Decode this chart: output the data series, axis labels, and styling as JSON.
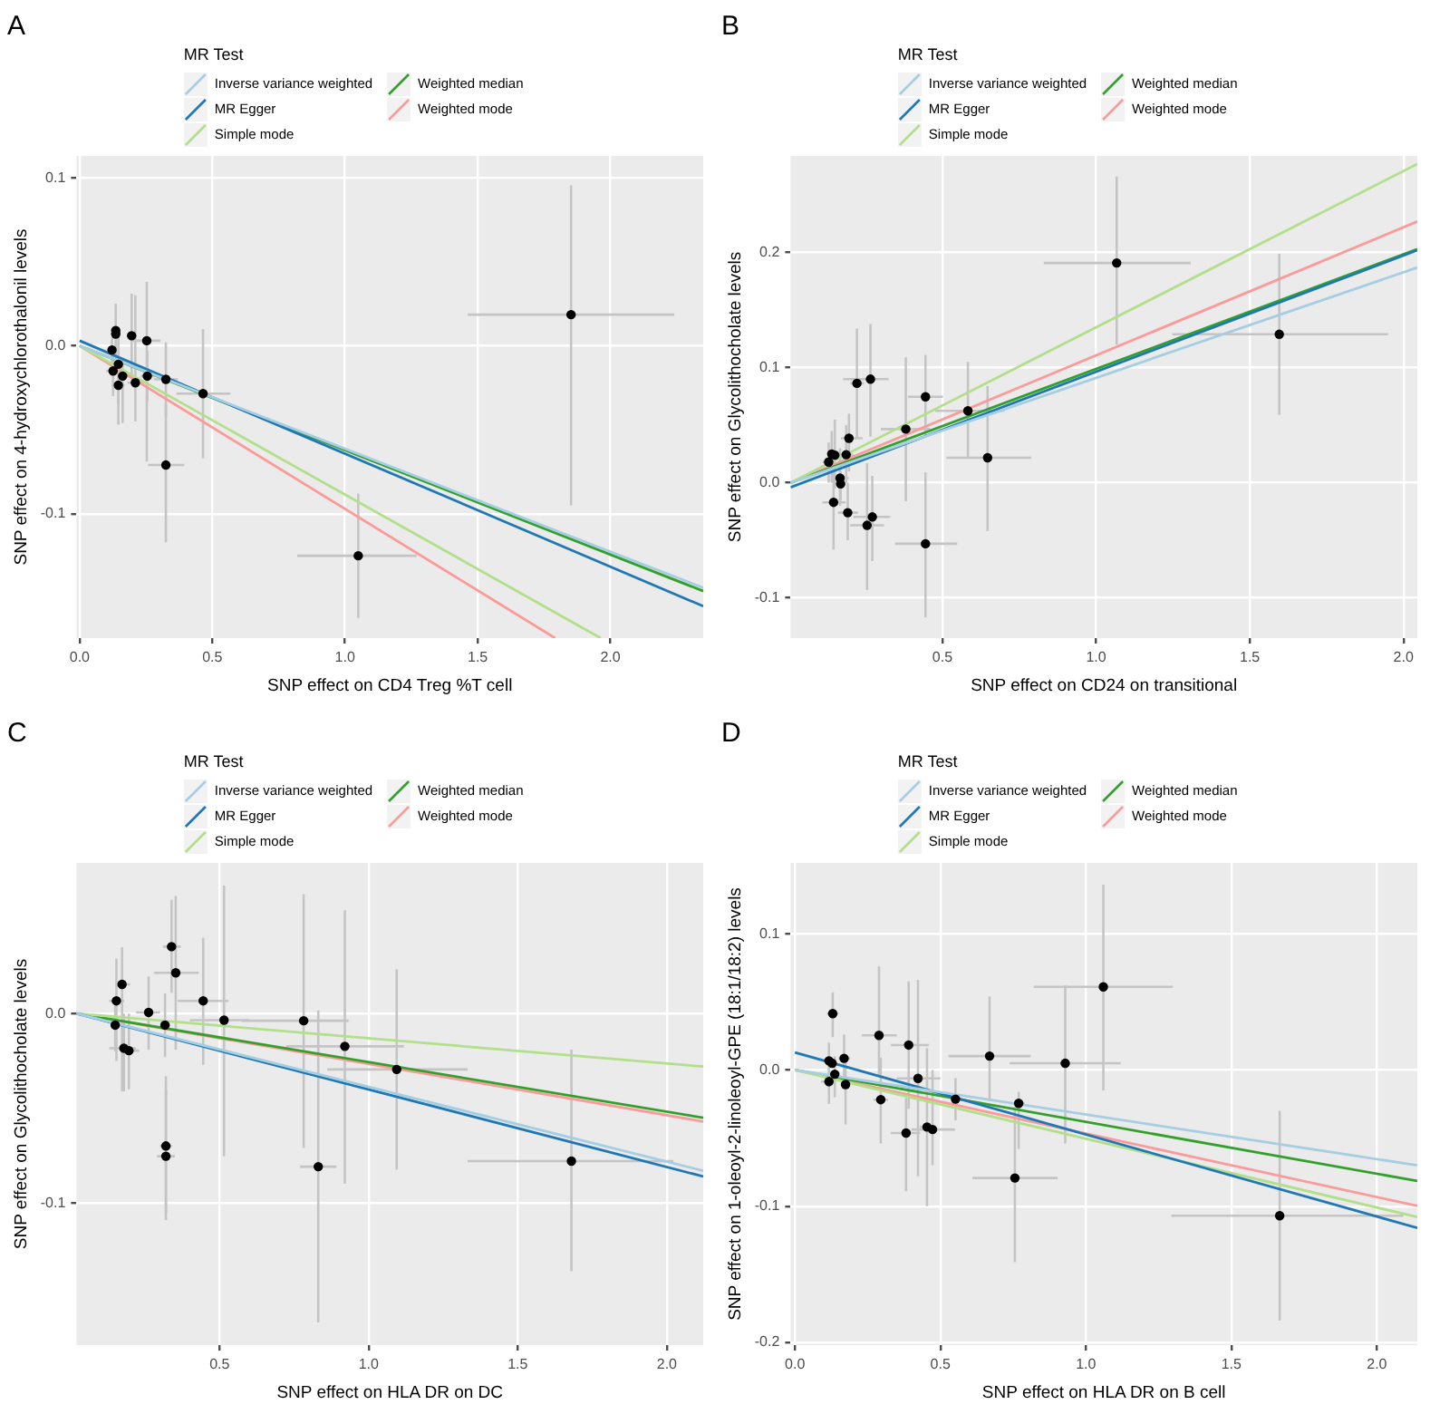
{
  "chart_data": [
    {
      "type": "scatter",
      "title": "A",
      "xlabel": "SNP effect on CD4 Treg %T cell",
      "ylabel": "SNP effect on 4-hydroxychlorothalonil levels",
      "legend_title": "MR Test",
      "legend": "top",
      "grid": true,
      "line_style": "solid",
      "xlim": [
        -0.012,
        2.35
      ],
      "ylim": [
        -0.174,
        0.113
      ],
      "xticks": [
        {
          "value": 0,
          "label": "0.0"
        },
        {
          "value": 0.5,
          "label": "0.5"
        },
        {
          "value": 1,
          "label": "1.0"
        },
        {
          "value": 1.5,
          "label": "1.5"
        },
        {
          "value": 2,
          "label": "2.0"
        }
      ],
      "yticks": [
        {
          "value": -0.1,
          "label": "-0.1"
        },
        {
          "value": 0,
          "label": "0.0"
        },
        {
          "value": 0.1,
          "label": "0.1"
        }
      ],
      "series": [
        {
          "color": "#000000",
          "marker": "circle",
          "x": [
            1.852,
            1.05,
            0.325,
            0.465,
            0.253,
            0.196,
            0.136,
            0.136,
            0.122,
            0.126,
            0.146,
            0.162,
            0.146,
            0.21,
            0.255,
            0.325
          ],
          "values": [
            0.0185,
            -0.125,
            -0.071,
            -0.0285,
            0.003,
            0.006,
            0.009,
            0.007,
            -0.0025,
            -0.015,
            -0.011,
            -0.018,
            -0.0235,
            -0.022,
            -0.018,
            -0.02
          ],
          "xerrors": [
            [
              1.463,
              2.241
            ],
            [
              0.82,
              1.27
            ],
            [
              0.258,
              0.394
            ],
            [
              0.365,
              0.568
            ],
            [
              0.2,
              0.305
            ],
            null,
            null,
            null,
            null,
            [
              0.1,
              0.15
            ],
            null,
            [
              0.14,
              0.185
            ],
            [
              0.12,
              0.17
            ],
            [
              0.18,
              0.24
            ],
            [
              0.23,
              0.28
            ],
            [
              0.28,
              0.37
            ]
          ],
          "errors": [
            [
              -0.095,
              0.0955
            ],
            [
              -0.162,
              -0.088
            ],
            [
              -0.117,
              -0.035
            ],
            [
              -0.067,
              0.01
            ],
            [
              -0.069,
              0.038
            ],
            [
              -0.02,
              0.031
            ],
            [
              -0.01,
              0.025
            ],
            null,
            [
              -0.01,
              0.005
            ],
            [
              -0.03,
              0
            ],
            [
              -0.047,
              0.01
            ],
            [
              -0.046,
              -0.007
            ],
            [
              -0.035,
              -0.012
            ],
            [
              -0.045,
              0.03
            ],
            [
              -0.033,
              -0.003
            ],
            [
              -0.042,
              0.002
            ]
          ]
        },
        {
          "type": "line",
          "name": "Inverse variance weighted",
          "color": "#a6cee3",
          "x": [
            0,
            2.35
          ],
          "values": [
            0,
            -0.144
          ]
        },
        {
          "type": "line",
          "name": "MR Egger",
          "color": "#1f78b4",
          "x": [
            0,
            2.35
          ],
          "values": [
            0.003,
            -0.155
          ]
        },
        {
          "type": "line",
          "name": "Simple mode",
          "color": "#b2df8a",
          "x": [
            0,
            1.964
          ],
          "values": [
            0,
            -0.174
          ]
        },
        {
          "type": "line",
          "name": "Weighted median",
          "color": "#33a02c",
          "x": [
            0,
            2.35
          ],
          "values": [
            0,
            -0.146
          ]
        },
        {
          "type": "line",
          "name": "Weighted mode",
          "color": "#fb9a99",
          "x": [
            0,
            1.792
          ],
          "values": [
            0,
            -0.174
          ]
        }
      ]
    },
    {
      "type": "scatter",
      "title": "B",
      "xlabel": "SNP effect on CD24 on transitional",
      "ylabel": "SNP effect on Glycolithocholate levels",
      "legend_title": "MR Test",
      "legend": "top",
      "grid": true,
      "line_style": "solid",
      "xlim": [
        0.006,
        2.045
      ],
      "ylim": [
        -0.135,
        0.284
      ],
      "xticks": [
        {
          "value": 0.5,
          "label": "0.5"
        },
        {
          "value": 1,
          "label": "1.0"
        },
        {
          "value": 1.5,
          "label": "1.5"
        },
        {
          "value": 2,
          "label": "2.0"
        }
      ],
      "yticks": [
        {
          "value": -0.1,
          "label": "-0.1"
        },
        {
          "value": 0,
          "label": "0.0"
        },
        {
          "value": 0.1,
          "label": "0.1"
        },
        {
          "value": 0.2,
          "label": "0.2"
        }
      ],
      "series": [
        {
          "color": "#000000",
          "marker": "circle",
          "x": [
            1.067,
            1.596,
            0.583,
            0.647,
            0.445,
            0.381,
            0.445,
            0.266,
            0.222,
            0.196,
            0.187,
            0.13,
            0.14,
            0.15,
            0.167,
            0.169,
            0.146,
            0.192,
            0.272,
            0.255
          ],
          "values": [
            0.191,
            0.129,
            0.0625,
            0.0217,
            0.0747,
            0.0466,
            -0.053,
            0.09,
            0.0864,
            0.0387,
            0.0244,
            0.018,
            0.025,
            0.024,
            0.004,
            -0.001,
            -0.017,
            -0.026,
            -0.0297,
            -0.037
          ],
          "xerrors": [
            [
              0.83,
              1.308
            ],
            [
              1.248,
              1.95
            ],
            [
              0.476,
              0.702
            ],
            [
              0.513,
              0.789
            ],
            [
              0.388,
              0.502
            ],
            [
              0.3,
              0.46
            ],
            [
              0.346,
              0.548
            ],
            [
              0.177,
              0.325
            ],
            [
              0.2,
              0.245
            ],
            [
              0.17,
              0.24
            ],
            [
              0.16,
              0.21
            ],
            [
              0.11,
              0.15
            ],
            null,
            null,
            [
              0.14,
              0.195
            ],
            null,
            [
              0.11,
              0.185
            ],
            [
              0.16,
              0.225
            ],
            [
              0.21,
              0.33
            ],
            [
              0.2,
              0.31
            ]
          ],
          "errors": [
            [
              0.12,
              0.266
            ],
            [
              0.059,
              0.199
            ],
            [
              0.022,
              0.105
            ],
            [
              -0.042,
              0.084
            ],
            [
              0.04,
              0.111
            ],
            [
              -0.016,
              0.109
            ],
            [
              -0.117,
              0.009
            ],
            [
              0.04,
              0.138
            ],
            [
              0.039,
              0.134
            ],
            [
              0.01,
              0.06
            ],
            [
              0,
              0.05
            ],
            [
              0,
              0.035
            ],
            [
              0,
              0.045
            ],
            [
              -0.005,
              0.055
            ],
            [
              -0.02,
              0.03
            ],
            [
              -0.015,
              0.01
            ],
            [
              -0.058,
              0.02
            ],
            [
              -0.05,
              0
            ],
            [
              -0.068,
              0.006
            ],
            [
              -0.093,
              0.017
            ]
          ]
        },
        {
          "type": "line",
          "name": "Inverse variance weighted",
          "color": "#a6cee3",
          "x": [
            0.006,
            2.045
          ],
          "values": [
            0,
            0.187
          ]
        },
        {
          "type": "line",
          "name": "MR Egger",
          "color": "#1f78b4",
          "x": [
            0.006,
            2.045
          ],
          "values": [
            -0.004,
            0.202
          ]
        },
        {
          "type": "line",
          "name": "Simple mode",
          "color": "#b2df8a",
          "x": [
            0.006,
            2.045
          ],
          "values": [
            0,
            0.277
          ]
        },
        {
          "type": "line",
          "name": "Weighted median",
          "color": "#33a02c",
          "x": [
            0.006,
            2.045
          ],
          "values": [
            0,
            0.203
          ]
        },
        {
          "type": "line",
          "name": "Weighted mode",
          "color": "#fb9a99",
          "x": [
            0.006,
            2.045
          ],
          "values": [
            0,
            0.227
          ]
        }
      ]
    },
    {
      "type": "scatter",
      "title": "C",
      "xlabel": "SNP effect on HLA DR on DC",
      "ylabel": "SNP effect on Glycolithocholate levels",
      "legend_title": "MR Test",
      "legend": "top",
      "grid": true,
      "line_style": "solid",
      "xlim": [
        0.02,
        2.122
      ],
      "ylim": [
        -0.175,
        0.0795
      ],
      "xticks": [
        {
          "value": 0.5,
          "label": "0.5"
        },
        {
          "value": 1,
          "label": "1.0"
        },
        {
          "value": 1.5,
          "label": "1.5"
        },
        {
          "value": 2,
          "label": "2.0"
        }
      ],
      "yticks": [
        {
          "value": -0.1,
          "label": "-0.1"
        },
        {
          "value": 0,
          "label": "0.0"
        }
      ],
      "series": [
        {
          "color": "#000000",
          "marker": "circle",
          "x": [
            1.68,
            1.094,
            0.92,
            0.831,
            0.782,
            0.515,
            0.445,
            0.353,
            0.339,
            0.32,
            0.32,
            0.317,
            0.262,
            0.173,
            0.154,
            0.15,
            0.179,
            0.196
          ],
          "values": [
            -0.0779,
            -0.0295,
            -0.0173,
            -0.0808,
            -0.0038,
            -0.0035,
            0.0067,
            0.0215,
            0.0353,
            -0.0699,
            -0.0753,
            -0.0061,
            0.0006,
            0.0154,
            0.0067,
            -0.0061,
            -0.0183,
            -0.0196
          ],
          "xerrors": [
            [
              1.332,
              2.022
            ],
            [
              0.861,
              1.332
            ],
            [
              0.723,
              1.118
            ],
            [
              0.77,
              0.892
            ],
            [
              0.574,
              0.933
            ],
            [
              0.4,
              0.6
            ],
            [
              0.36,
              0.53
            ],
            [
              0.28,
              0.43
            ],
            [
              0.31,
              0.37
            ],
            [
              0.3,
              0.34
            ],
            [
              0.29,
              0.35
            ],
            [
              0.3,
              0.335
            ],
            [
              0.22,
              0.3
            ],
            [
              0.15,
              0.2
            ],
            [
              0.13,
              0.18
            ],
            null,
            [
              0.13,
              0.22
            ],
            [
              0.17,
              0.23
            ]
          ],
          "errors": [
            [
              -0.136,
              -0.019
            ],
            [
              -0.0824,
              0.0234
            ],
            [
              -0.0898,
              0.0545
            ],
            [
              -0.163,
              0.0016
            ],
            [
              -0.071,
              0.063
            ],
            [
              -0.0753,
              0.0676
            ],
            [
              -0.027,
              0.04
            ],
            [
              -0.019,
              0.062
            ],
            [
              0.011,
              0.06
            ],
            [
              -0.105,
              -0.033
            ],
            [
              -0.109,
              -0.04
            ],
            [
              -0.023,
              0.0106
            ],
            [
              -0.019,
              0.0196
            ],
            [
              -0.041,
              0.035
            ],
            [
              -0.025,
              0.029
            ],
            [
              -0.02,
              0.005
            ],
            [
              -0.041,
              0
            ],
            [
              -0.04,
              0
            ]
          ]
        },
        {
          "type": "line",
          "name": "Inverse variance weighted",
          "color": "#a6cee3",
          "x": [
            0.02,
            2.122
          ],
          "values": [
            0,
            -0.083
          ]
        },
        {
          "type": "line",
          "name": "MR Egger",
          "color": "#1f78b4",
          "x": [
            0.02,
            2.122
          ],
          "values": [
            0,
            -0.086
          ]
        },
        {
          "type": "line",
          "name": "Simple mode",
          "color": "#b2df8a",
          "x": [
            0.02,
            2.122
          ],
          "values": [
            0,
            -0.028
          ]
        },
        {
          "type": "line",
          "name": "Weighted median",
          "color": "#33a02c",
          "x": [
            0.02,
            2.122
          ],
          "values": [
            0,
            -0.055
          ]
        },
        {
          "type": "line",
          "name": "Weighted mode",
          "color": "#fb9a99",
          "x": [
            0.02,
            2.122
          ],
          "values": [
            0,
            -0.057
          ]
        }
      ]
    },
    {
      "type": "scatter",
      "title": "D",
      "xlabel": "SNP effect on HLA DR on B cell",
      "ylabel": "SNP effect on 1-oleoyl-2-linoleoyl-GPE (18:1/18:2) levels",
      "legend_title": "MR Test",
      "legend": "top",
      "grid": true,
      "line_style": "solid",
      "xlim": [
        -0.015,
        2.139
      ],
      "ylim": [
        -0.202,
        0.152
      ],
      "xticks": [
        {
          "value": 0,
          "label": "0.0"
        },
        {
          "value": 0.5,
          "label": "0.5"
        },
        {
          "value": 1,
          "label": "1.0"
        },
        {
          "value": 1.5,
          "label": "1.5"
        },
        {
          "value": 2,
          "label": "2.0"
        }
      ],
      "yticks": [
        {
          "value": -0.2,
          "label": "-0.2"
        },
        {
          "value": -0.1,
          "label": "-0.1"
        },
        {
          "value": 0,
          "label": "0.0"
        },
        {
          "value": 0.1,
          "label": "0.1"
        }
      ],
      "series": [
        {
          "color": "#000000",
          "marker": "circle",
          "x": [
            1.666,
            1.06,
            0.929,
            0.669,
            0.756,
            0.769,
            0.552,
            0.473,
            0.454,
            0.423,
            0.391,
            0.382,
            0.289,
            0.295,
            0.13,
            0.169,
            0.174,
            0.117,
            0.128,
            0.137,
            0.117
          ],
          "values": [
            -0.107,
            0.061,
            0.0049,
            0.0102,
            -0.0793,
            -0.0245,
            -0.0214,
            -0.0437,
            -0.0419,
            -0.0062,
            0.0183,
            -0.0463,
            0.0254,
            -0.0218,
            0.0414,
            0.0085,
            -0.0107,
            0.0067,
            0.0049,
            -0.0031,
            -0.0085
          ],
          "xerrors": [
            [
              1.294,
              2.091
            ],
            [
              0.821,
              1.299
            ],
            [
              0.738,
              1.12
            ],
            [
              0.528,
              0.81
            ],
            [
              0.61,
              0.903
            ],
            [
              0.75,
              0.79
            ],
            [
              0.54,
              0.565
            ],
            [
              0.4,
              0.55
            ],
            [
              0.43,
              0.48
            ],
            [
              0.35,
              0.5
            ],
            [
              0.33,
              0.46
            ],
            [
              0.33,
              0.43
            ],
            [
              0.23,
              0.35
            ],
            [
              0.27,
              0.32
            ],
            [
              0.11,
              0.15
            ],
            [
              0.15,
              0.19
            ],
            null,
            null,
            null,
            null,
            [
              0.09,
              0.14
            ]
          ],
          "errors": [
            [
              -0.184,
              -0.03
            ],
            [
              -0.015,
              0.136
            ],
            [
              -0.054,
              0.062
            ],
            [
              -0.023,
              0.054
            ],
            [
              -0.141,
              -0.027
            ],
            [
              -0.058,
              -0.016
            ],
            [
              -0.037,
              -0.006
            ],
            [
              -0.07,
              0
            ],
            [
              -0.1,
              0.016
            ],
            [
              -0.078,
              0.066
            ],
            [
              -0.0285,
              0.065
            ],
            [
              -0.089,
              -0.0205
            ],
            [
              -0.004,
              0.076
            ],
            [
              -0.054,
              0.009
            ],
            [
              0.024,
              0.057
            ],
            [
              -0.009,
              0.026
            ],
            [
              -0.04,
              0.01
            ],
            [
              -0.01,
              0.02
            ],
            null,
            [
              -0.02,
              0.01
            ],
            [
              -0.025,
              0.005
            ]
          ]
        },
        {
          "type": "line",
          "name": "Inverse variance weighted",
          "color": "#a6cee3",
          "x": [
            0,
            2.139
          ],
          "values": [
            0,
            -0.07
          ]
        },
        {
          "type": "line",
          "name": "MR Egger",
          "color": "#1f78b4",
          "x": [
            0,
            2.139
          ],
          "values": [
            0.0129,
            -0.116
          ]
        },
        {
          "type": "line",
          "name": "Simple mode",
          "color": "#b2df8a",
          "x": [
            0,
            2.139
          ],
          "values": [
            0,
            -0.108
          ]
        },
        {
          "type": "line",
          "name": "Weighted median",
          "color": "#33a02c",
          "x": [
            0,
            2.139
          ],
          "values": [
            0,
            -0.0815
          ]
        },
        {
          "type": "line",
          "name": "Weighted mode",
          "color": "#fb9a99",
          "x": [
            0,
            2.139
          ],
          "values": [
            0,
            -0.0998
          ]
        }
      ]
    }
  ]
}
